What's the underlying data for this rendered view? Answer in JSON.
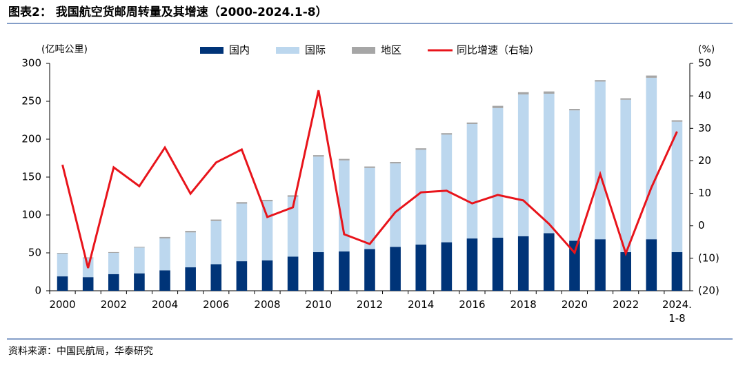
{
  "chart_data": {
    "type": "bar",
    "stacked": true,
    "title": "图表2： 我国航空货邮周转量及其增速（2000-2024.1-8）",
    "y_label": "(亿吨公里)",
    "y2_label": "(%)",
    "source": "资料来源：中国民航局，华泰研究",
    "categories": [
      "2000",
      null,
      "2002",
      null,
      "2004",
      null,
      "2006",
      null,
      "2008",
      null,
      "2010",
      null,
      "2012",
      null,
      "2014",
      null,
      "2016",
      null,
      "2018",
      null,
      "2020",
      null,
      "2022",
      null,
      "2024.\n1-8"
    ],
    "series": [
      {
        "name": "国内",
        "color": "#003478",
        "values": [
          19,
          18,
          22,
          23,
          27,
          31,
          35,
          39,
          40,
          45,
          51,
          52,
          55,
          58,
          61,
          64,
          69,
          70,
          72,
          76,
          66,
          68,
          51,
          68,
          51
        ]
      },
      {
        "name": "国际",
        "color": "#bcd7ee",
        "values": [
          30,
          25,
          28,
          34,
          42,
          46,
          57,
          76,
          78,
          79,
          126,
          120,
          107,
          110,
          125,
          142,
          151,
          171,
          187,
          184,
          172,
          208,
          201,
          213,
          172
        ]
      },
      {
        "name": "地区",
        "color": "#a6a6a6",
        "values": [
          1,
          1,
          1,
          1,
          2,
          2,
          2,
          2,
          2,
          2,
          2,
          2,
          2,
          2,
          2,
          2,
          2,
          3,
          3,
          3,
          2,
          2,
          2,
          3,
          2
        ]
      },
      {
        "name": "同比增速（右轴）",
        "color": "#e8141b",
        "type": "line",
        "axis": "y2",
        "values": [
          18.8,
          -13,
          18,
          12.2,
          24.1,
          9.9,
          19.5,
          23.5,
          2.7,
          5.7,
          41.7,
          -2.6,
          -5.6,
          4.2,
          10.3,
          10.8,
          6.9,
          9.5,
          7.8,
          0.6,
          -8.3,
          15.9,
          -8.5,
          11.8,
          29
        ]
      }
    ],
    "ylim": [
      0,
      300
    ],
    "yticks": [
      0,
      50,
      100,
      150,
      200,
      250,
      300
    ],
    "y2lim": [
      -20,
      50
    ],
    "y2ticks": [
      {
        "value": -20,
        "label": "(20)"
      },
      {
        "value": -10,
        "label": "(10)"
      },
      0,
      10,
      20,
      30,
      40,
      50
    ],
    "legend": "top"
  }
}
